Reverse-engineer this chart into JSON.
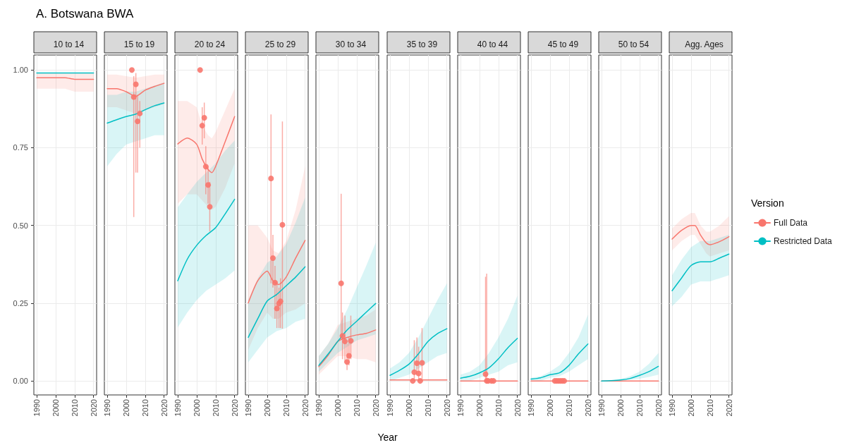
{
  "chart_data": [
    {
      "type": "line",
      "title": "A. Botswana BWA",
      "subtitle": "10 to 14",
      "xlim": [
        1988.5,
        2021.6
      ],
      "ylim": [
        -0.045,
        1.048
      ],
      "xticks": [
        1990,
        2000,
        2010,
        2020
      ],
      "yticks": [
        {
          "value": 0,
          "label": "0.00"
        },
        {
          "value": 0.25,
          "label": "0.25"
        },
        {
          "value": 0.5,
          "label": "0.50"
        },
        {
          "value": 0.75,
          "label": "0.75"
        },
        {
          "value": 1,
          "label": "1.00"
        }
      ],
      "grid": true,
      "series": [
        {
          "color": "#f8766d",
          "type": "line",
          "x": [
            1990,
            1995,
            2000,
            2005,
            2010,
            2015,
            2020
          ],
          "values": [
            0.975,
            0.975,
            0.975,
            0.975,
            0.97,
            0.97,
            0.97
          ],
          "lower": [
            0.94,
            0.94,
            0.94,
            0.94,
            0.93,
            0.93,
            0.93
          ],
          "upper": [
            0.99,
            0.99,
            0.99,
            0.99,
            0.99,
            0.99,
            0.99
          ]
        },
        {
          "color": "#00bfc4",
          "type": "line",
          "x": [
            1990,
            1995,
            2000,
            2005,
            2010,
            2015,
            2020
          ],
          "values": [
            0.99,
            0.99,
            0.99,
            0.99,
            0.99,
            0.99,
            0.99
          ]
        }
      ]
    },
    {
      "type": "line",
      "subtitle": "15 to 19",
      "xlim": [
        1988.5,
        2021.6
      ],
      "ylim": [
        -0.045,
        1.048
      ],
      "xticks": [
        1990,
        2000,
        2010,
        2020
      ],
      "yticks": [
        0,
        0.25,
        0.5,
        0.75,
        1
      ],
      "grid": true,
      "tick_labels": "x",
      "series": [
        {
          "color": "#f8766d",
          "type": "line",
          "x": [
            1990,
            1995,
            2000,
            2005,
            2010,
            2015,
            2020
          ],
          "values": [
            0.94,
            0.94,
            0.93,
            0.915,
            0.935,
            0.947,
            0.957
          ],
          "lower": [
            0.88,
            0.88,
            0.87,
            0.86,
            0.87,
            0.88,
            0.89
          ],
          "upper": [
            0.985,
            0.985,
            0.98,
            0.975,
            0.98,
            0.985,
            0.985
          ]
        },
        {
          "color": "#00bfc4",
          "type": "line",
          "x": [
            1990,
            1995,
            2000,
            2005,
            2010,
            2015,
            2020
          ],
          "values": [
            0.829,
            0.84,
            0.85,
            0.858,
            0.872,
            0.885,
            0.894
          ],
          "lower": [
            0.69,
            0.73,
            0.76,
            0.77,
            0.78,
            0.79,
            0.79
          ],
          "upper": [
            0.92,
            0.92,
            0.93,
            0.93,
            0.94,
            0.95,
            0.96
          ]
        },
        {
          "color": "#f8766d",
          "type": "scatter",
          "marker": "circle",
          "x": [
            2003,
            2004,
            2005.1,
            2006,
            2007.2
          ],
          "values": [
            1.0,
            0.913,
            0.954,
            0.835,
            0.86
          ],
          "errors": [
            null,
            [
              0.527,
              0.98
            ],
            [
              0.67,
              0.99
            ],
            [
              0.67,
              0.92
            ],
            [
              0.75,
              0.9
            ]
          ]
        }
      ]
    },
    {
      "type": "line",
      "subtitle": "20 to 24",
      "xlim": [
        1988.5,
        2021.6
      ],
      "ylim": [
        -0.045,
        1.048
      ],
      "xticks": [
        1990,
        2000,
        2010,
        2020
      ],
      "yticks": [
        0,
        0.25,
        0.5,
        0.75,
        1
      ],
      "grid": true,
      "tick_labels": "x",
      "series": [
        {
          "color": "#f8766d",
          "type": "line",
          "x": [
            1990,
            1995,
            2000,
            2003,
            2006,
            2008,
            2010,
            2015,
            2020
          ],
          "values": [
            0.762,
            0.781,
            0.761,
            0.712,
            0.68,
            0.67,
            0.69,
            0.769,
            0.85
          ],
          "lower": [
            0.57,
            0.6,
            0.6,
            0.58,
            0.56,
            0.55,
            0.56,
            0.62,
            0.7
          ],
          "upper": [
            0.9,
            0.9,
            0.88,
            0.82,
            0.79,
            0.78,
            0.8,
            0.87,
            0.94
          ]
        },
        {
          "color": "#00bfc4",
          "type": "line",
          "x": [
            1990,
            1995,
            2000,
            2005,
            2010,
            2015,
            2020
          ],
          "values": [
            0.322,
            0.391,
            0.436,
            0.468,
            0.493,
            0.537,
            0.584
          ],
          "lower": [
            0.172,
            0.22,
            0.26,
            0.29,
            0.31,
            0.33,
            0.355
          ],
          "upper": [
            0.558,
            0.6,
            0.64,
            0.67,
            0.7,
            0.74,
            0.773
          ]
        },
        {
          "color": "#f8766d",
          "type": "scatter",
          "marker": "circle",
          "x": [
            2001.8,
            2002.9,
            2004,
            2004.8,
            2006,
            2006.9
          ],
          "values": [
            1.0,
            0.821,
            0.846,
            0.689,
            0.63,
            0.56
          ],
          "errors": [
            null,
            [
              0.76,
              0.88
            ],
            [
              0.78,
              0.895
            ],
            [
              0.6,
              0.755
            ],
            [
              0.57,
              0.69
            ],
            [
              0.48,
              0.64
            ]
          ]
        }
      ]
    },
    {
      "type": "line",
      "subtitle": "25 to 29",
      "xlim": [
        1988.5,
        2021.6
      ],
      "ylim": [
        -0.045,
        1.048
      ],
      "xticks": [
        1990,
        2000,
        2010,
        2020
      ],
      "yticks": [
        0,
        0.25,
        0.5,
        0.75,
        1
      ],
      "grid": true,
      "tick_labels": "x",
      "series": [
        {
          "color": "#f8766d",
          "type": "line",
          "x": [
            1990,
            1995,
            2000,
            2003,
            2006,
            2010,
            2015,
            2020
          ],
          "values": [
            0.251,
            0.322,
            0.353,
            0.322,
            0.31,
            0.334,
            0.395,
            0.452
          ],
          "lower": [
            0.1,
            0.17,
            0.22,
            0.2,
            0.2,
            0.22,
            0.23,
            0.25
          ],
          "upper": [
            0.5,
            0.5,
            0.46,
            0.42,
            0.41,
            0.45,
            0.55,
            0.69
          ]
        },
        {
          "color": "#00bfc4",
          "type": "line",
          "x": [
            1990,
            1995,
            2000,
            2005,
            2010,
            2015,
            2020
          ],
          "values": [
            0.14,
            0.2,
            0.257,
            0.278,
            0.306,
            0.334,
            0.367
          ],
          "lower": [
            0.06,
            0.1,
            0.14,
            0.16,
            0.17,
            0.19,
            0.2
          ],
          "upper": [
            0.26,
            0.33,
            0.38,
            0.4,
            0.44,
            0.51,
            0.59
          ]
        },
        {
          "color": "#f8766d",
          "type": "scatter",
          "marker": "circle",
          "x": [
            2002,
            2003,
            2004.1,
            2005.1,
            2006.2,
            2007,
            2008
          ],
          "values": [
            0.651,
            0.395,
            0.316,
            0.233,
            0.249,
            0.256,
            0.502
          ],
          "errors": [
            [
              0.314,
              0.857
            ],
            [
              0.3,
              0.47
            ],
            [
              0.2,
              0.37
            ],
            [
              0.17,
              0.32
            ],
            [
              0.17,
              0.3
            ],
            [
              0.17,
              0.33
            ],
            [
              0.168,
              0.834
            ]
          ]
        }
      ]
    },
    {
      "type": "line",
      "subtitle": "30 to 34",
      "xlabel": "Year",
      "xlim": [
        1988.5,
        2021.6
      ],
      "ylim": [
        -0.045,
        1.048
      ],
      "xticks": [
        1990,
        2000,
        2010,
        2020
      ],
      "yticks": [
        0,
        0.25,
        0.5,
        0.75,
        1
      ],
      "grid": true,
      "tick_labels": "x",
      "series": [
        {
          "color": "#f8766d",
          "type": "line",
          "x": [
            1990,
            1995,
            2000,
            2005,
            2010,
            2015,
            2020
          ],
          "values": [
            0.046,
            0.083,
            0.127,
            0.14,
            0.148,
            0.153,
            0.164
          ],
          "lower": [
            0.02,
            0.05,
            0.08,
            0.08,
            0.07,
            0.07,
            0.06
          ],
          "upper": [
            0.08,
            0.12,
            0.18,
            0.19,
            0.2,
            0.21,
            0.23
          ]
        },
        {
          "color": "#00bfc4",
          "type": "line",
          "x": [
            1990,
            1995,
            2000,
            2005,
            2010,
            2015,
            2020
          ],
          "values": [
            0.05,
            0.087,
            0.127,
            0.164,
            0.192,
            0.221,
            0.249
          ],
          "lower": [
            0.03,
            0.06,
            0.09,
            0.11,
            0.13,
            0.14,
            0.15
          ],
          "upper": [
            0.08,
            0.12,
            0.17,
            0.23,
            0.3,
            0.37,
            0.444
          ]
        },
        {
          "color": "#f8766d",
          "type": "scatter",
          "marker": "circle",
          "x": [
            2001.8,
            2002.5,
            2003.8,
            2004.9,
            2005.9,
            2006.9
          ],
          "values": [
            0.314,
            0.145,
            0.127,
            0.061,
            0.081,
            0.129
          ],
          "errors": [
            [
              0.136,
              0.602
            ],
            [
              0.07,
              0.22
            ],
            [
              0.06,
              0.21
            ],
            [
              0.035,
              0.12
            ],
            [
              0.05,
              0.14
            ],
            [
              0.07,
              0.21
            ]
          ]
        }
      ]
    },
    {
      "type": "line",
      "subtitle": "35 to 39",
      "xlim": [
        1988.5,
        2021.6
      ],
      "ylim": [
        -0.045,
        1.048
      ],
      "xticks": [
        1990,
        2000,
        2010,
        2020
      ],
      "yticks": [
        0,
        0.25,
        0.5,
        0.75,
        1
      ],
      "grid": true,
      "tick_labels": "x",
      "series": [
        {
          "color": "#f8766d",
          "type": "line",
          "x": [
            1990,
            1995,
            2000,
            2005,
            2010,
            2015,
            2020
          ],
          "values": [
            0.003,
            0.003,
            0.003,
            0.003,
            0.003,
            0.003,
            0.003
          ]
        },
        {
          "color": "#00bfc4",
          "type": "line",
          "x": [
            1990,
            1995,
            2000,
            2005,
            2010,
            2015,
            2020
          ],
          "values": [
            0.018,
            0.034,
            0.054,
            0.087,
            0.127,
            0.152,
            0.168
          ],
          "lower": [
            0.0,
            0.01,
            0.02,
            0.04,
            0.06,
            0.08,
            0.09
          ],
          "upper": [
            0.04,
            0.06,
            0.09,
            0.14,
            0.2,
            0.26,
            0.314
          ]
        },
        {
          "color": "#f8766d",
          "type": "scatter",
          "marker": "circle",
          "x": [
            2002,
            2002.8,
            2004.2,
            2005.1,
            2005.9,
            2006.9
          ],
          "values": [
            0,
            0.028,
            0.057,
            0.024,
            0,
            0.058
          ],
          "errors": [
            null,
            [
              0,
              0.131
            ],
            [
              0.02,
              0.14
            ],
            [
              0,
              0.11
            ],
            null,
            [
              0,
              0.17
            ]
          ]
        }
      ]
    },
    {
      "type": "line",
      "subtitle": "40 to 44",
      "xlim": [
        1988.5,
        2021.6
      ],
      "ylim": [
        -0.045,
        1.048
      ],
      "xticks": [
        1990,
        2000,
        2010,
        2020
      ],
      "yticks": [
        0,
        0.25,
        0.5,
        0.75,
        1
      ],
      "grid": true,
      "tick_labels": "x",
      "series": [
        {
          "color": "#f8766d",
          "type": "line",
          "x": [
            1990,
            1995,
            2000,
            2005,
            2010,
            2015,
            2020
          ],
          "values": [
            0,
            0,
            0,
            0,
            0,
            0,
            0
          ]
        },
        {
          "color": "#00bfc4",
          "type": "line",
          "x": [
            1990,
            1995,
            2000,
            2005,
            2010,
            2015,
            2020
          ],
          "values": [
            0.009,
            0.015,
            0.026,
            0.042,
            0.071,
            0.107,
            0.137
          ],
          "lower": [
            0,
            0,
            0.01,
            0.02,
            0.03,
            0.05,
            0.06
          ],
          "upper": [
            0.02,
            0.03,
            0.05,
            0.09,
            0.14,
            0.2,
            0.274
          ]
        },
        {
          "color": "#f8766d",
          "type": "scatter",
          "marker": "circle",
          "x": [
            2003.2,
            2003.8,
            2004.6,
            2006.3,
            2007.4
          ],
          "values": [
            0.022,
            0,
            0,
            0,
            0
          ],
          "errors": [
            [
              0,
              0.335
            ],
            [
              0,
              0.345
            ],
            null,
            null,
            null
          ]
        }
      ]
    },
    {
      "type": "line",
      "subtitle": "45 to 49",
      "xlim": [
        1988.5,
        2021.6
      ],
      "ylim": [
        -0.045,
        1.048
      ],
      "xticks": [
        1990,
        2000,
        2010,
        2020
      ],
      "yticks": [
        0,
        0.25,
        0.5,
        0.75,
        1
      ],
      "grid": true,
      "tick_labels": "x",
      "series": [
        {
          "color": "#f8766d",
          "type": "line",
          "x": [
            1990,
            1995,
            2000,
            2005,
            2010,
            2015,
            2020
          ],
          "values": [
            0,
            0,
            0,
            0,
            0,
            0,
            0
          ]
        },
        {
          "color": "#00bfc4",
          "type": "line",
          "x": [
            1990,
            1995,
            2000,
            2005,
            2010,
            2015,
            2020
          ],
          "values": [
            0.006,
            0.01,
            0.02,
            0.026,
            0.05,
            0.087,
            0.119
          ],
          "lower": [
            0,
            0,
            0.01,
            0.015,
            0.03,
            0.05,
            0.07
          ],
          "upper": [
            0.01,
            0.015,
            0.03,
            0.05,
            0.09,
            0.14,
            0.213
          ]
        },
        {
          "color": "#f8766d",
          "type": "scatter",
          "marker": "circle",
          "x": [
            2002.5,
            2003.5,
            2004.5,
            2005.5,
            2006.5,
            2007.5
          ],
          "values": [
            0,
            0,
            0,
            0,
            0,
            0
          ]
        }
      ]
    },
    {
      "type": "line",
      "subtitle": "50 to 54",
      "xlim": [
        1988.5,
        2021.6
      ],
      "ylim": [
        -0.045,
        1.048
      ],
      "xticks": [
        1990,
        2000,
        2010,
        2020
      ],
      "yticks": [
        0,
        0.25,
        0.5,
        0.75,
        1
      ],
      "grid": true,
      "tick_labels": "x",
      "series": [
        {
          "color": "#f8766d",
          "type": "line",
          "x": [
            1990,
            1995,
            2000,
            2005,
            2010,
            2015,
            2020
          ],
          "values": [
            0,
            0,
            0,
            0,
            0,
            0,
            0
          ]
        },
        {
          "color": "#00bfc4",
          "type": "line",
          "x": [
            1990,
            1995,
            2000,
            2005,
            2010,
            2015,
            2020
          ],
          "values": [
            0,
            0.001,
            0.003,
            0.008,
            0.018,
            0.03,
            0.047
          ],
          "lower": [
            0,
            0,
            0.001,
            0.003,
            0.007,
            0.013,
            0.02
          ],
          "upper": [
            0,
            0.002,
            0.006,
            0.015,
            0.03,
            0.055,
            0.09
          ]
        }
      ]
    },
    {
      "type": "line",
      "subtitle": "Agg. Ages",
      "legend": "right",
      "legend_title": "Version",
      "xlim": [
        1988.5,
        2021.6
      ],
      "ylim": [
        -0.045,
        1.048
      ],
      "xticks": [
        1990,
        2000,
        2010,
        2020
      ],
      "yticks": [
        0,
        0.25,
        0.5,
        0.75,
        1
      ],
      "grid": true,
      "tick_labels": "x",
      "series": [
        {
          "name": "Full Data",
          "color": "#f8766d",
          "type": "line",
          "x": [
            1990,
            1995,
            2000,
            2002,
            2005,
            2008,
            2010,
            2015,
            2020
          ],
          "values": [
            0.456,
            0.484,
            0.5,
            0.5,
            0.469,
            0.444,
            0.438,
            0.448,
            0.464
          ],
          "lower": [
            0.42,
            0.45,
            0.47,
            0.47,
            0.44,
            0.41,
            0.4,
            0.41,
            0.42
          ],
          "upper": [
            0.49,
            0.52,
            0.54,
            0.54,
            0.5,
            0.48,
            0.48,
            0.5,
            0.53
          ]
        },
        {
          "name": "Restricted Data",
          "color": "#00bfc4",
          "type": "line",
          "x": [
            1990,
            1995,
            2000,
            2005,
            2010,
            2015,
            2020
          ],
          "values": [
            0.29,
            0.331,
            0.371,
            0.383,
            0.383,
            0.395,
            0.408
          ],
          "lower": [
            0.24,
            0.27,
            0.31,
            0.32,
            0.32,
            0.33,
            0.34
          ],
          "upper": [
            0.34,
            0.39,
            0.43,
            0.45,
            0.45,
            0.46,
            0.47
          ]
        }
      ]
    }
  ]
}
